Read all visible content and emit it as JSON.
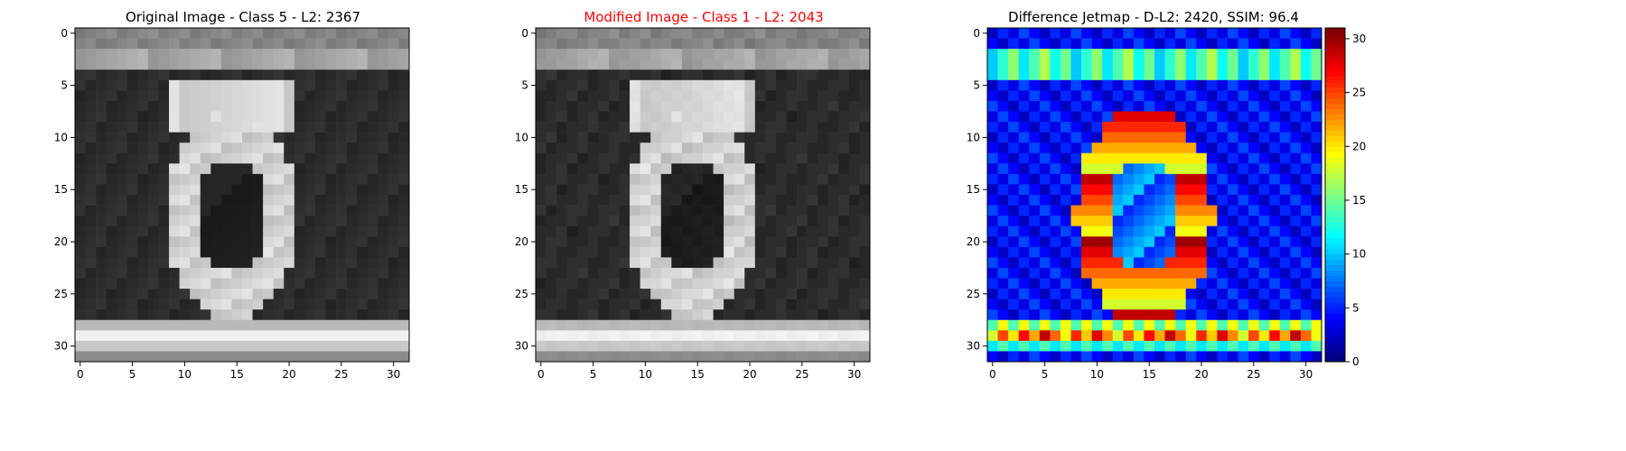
{
  "colors": {
    "modified_title": "#ff0000",
    "axis": "#000000"
  },
  "chart_data": [
    {
      "type": "heatmap",
      "title": "Original Image - Class 5 - L2: 2367",
      "colormap": "gray",
      "xlim": [
        -0.5,
        31.5
      ],
      "ylim": [
        31.5,
        -0.5
      ],
      "xticks": [
        0,
        5,
        10,
        15,
        20,
        25,
        30
      ],
      "yticks": [
        0,
        5,
        10,
        15,
        20,
        25,
        30
      ],
      "grid": false,
      "digit": "0"
    },
    {
      "type": "heatmap",
      "title": "Modified Image - Class 1 - L2: 2043",
      "colormap": "gray",
      "xlim": [
        -0.5,
        31.5
      ],
      "ylim": [
        31.5,
        -0.5
      ],
      "xticks": [
        0,
        5,
        10,
        15,
        20,
        25,
        30
      ],
      "yticks": [
        0,
        5,
        10,
        15,
        20,
        25,
        30
      ],
      "grid": false,
      "digit": "0"
    },
    {
      "type": "heatmap",
      "title": "Difference Jetmap - D-L2: 2420, SSIM: 96.4",
      "colormap": "jet",
      "xlim": [
        -0.5,
        31.5
      ],
      "ylim": [
        31.5,
        -0.5
      ],
      "xticks": [
        0,
        5,
        10,
        15,
        20,
        25,
        30
      ],
      "yticks": [
        0,
        5,
        10,
        15,
        20,
        25,
        30
      ],
      "grid": false,
      "colorbar": {
        "range": [
          0,
          31
        ],
        "ticks": [
          0,
          5,
          10,
          15,
          20,
          25,
          30
        ]
      }
    }
  ]
}
